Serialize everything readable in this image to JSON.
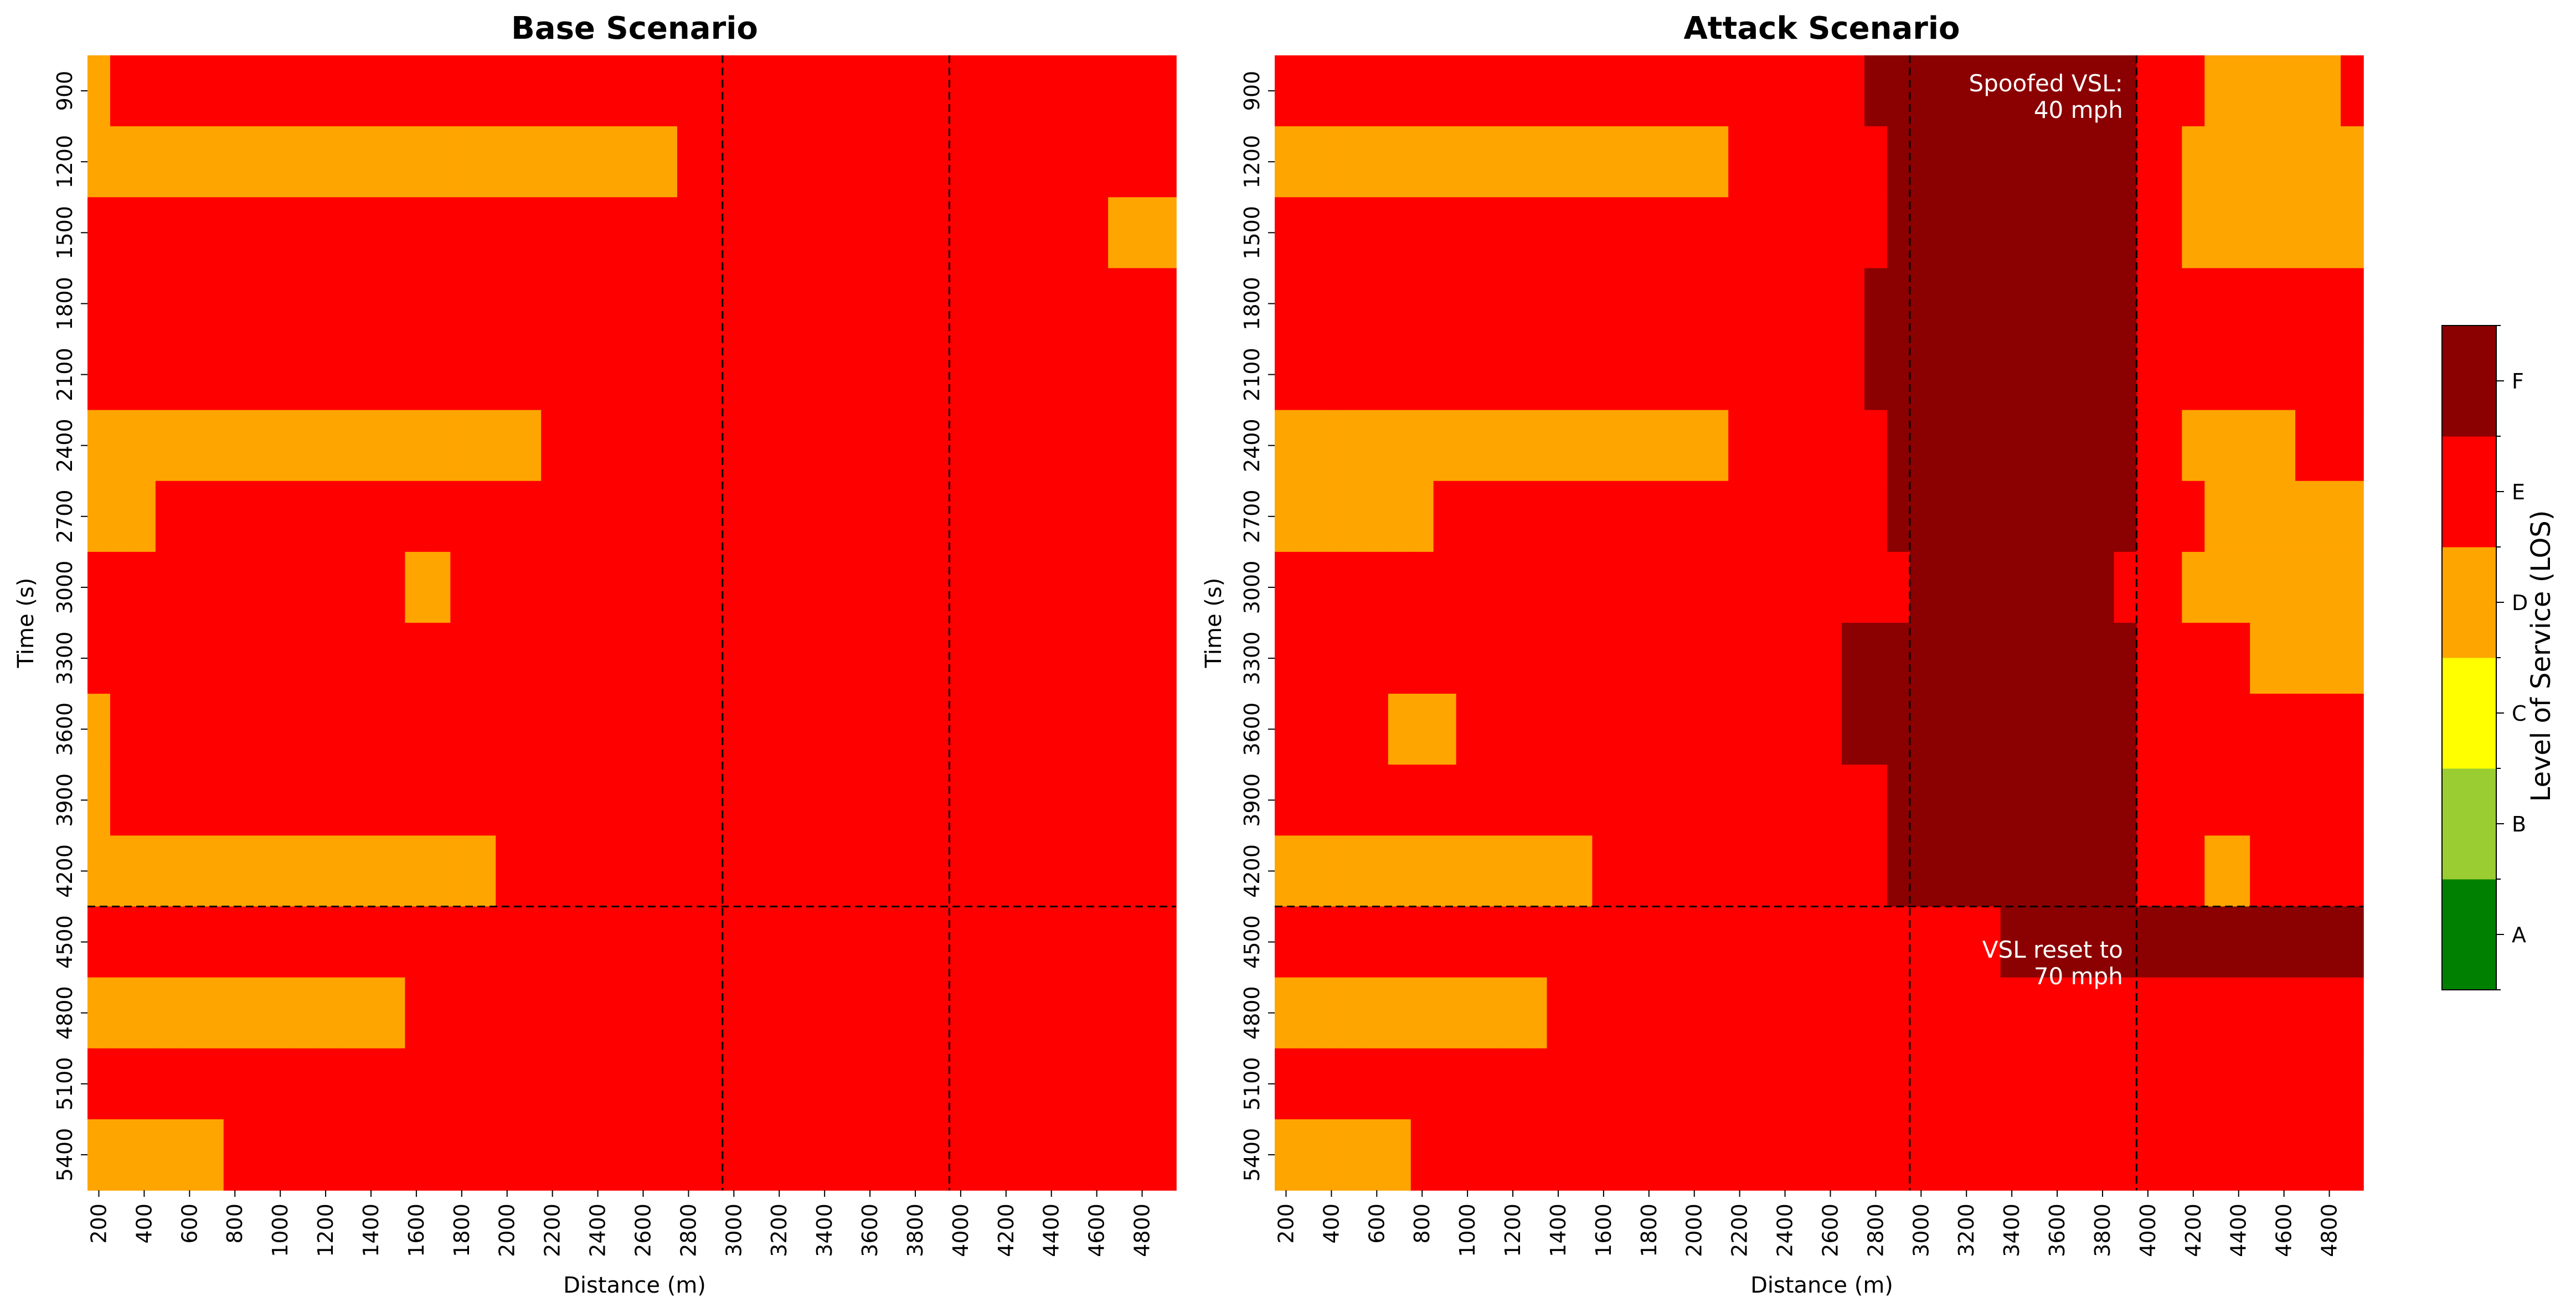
{
  "chart_data": {
    "type": "heatmap",
    "xlabel": "Distance (m)",
    "ylabel": "Time (s)",
    "x": [
      200,
      300,
      400,
      500,
      600,
      700,
      800,
      900,
      1000,
      1100,
      1200,
      1300,
      1400,
      1500,
      1600,
      1700,
      1800,
      1900,
      2000,
      2100,
      2200,
      2300,
      2400,
      2500,
      2600,
      2700,
      2800,
      2900,
      3000,
      3100,
      3200,
      3300,
      3400,
      3500,
      3600,
      3700,
      3800,
      3900,
      4000,
      4100,
      4200,
      4300,
      4400,
      4500,
      4600,
      4700,
      4800,
      4900
    ],
    "x_tick_labels": [
      "200",
      "400",
      "600",
      "800",
      "1000",
      "1200",
      "1400",
      "1600",
      "1800",
      "2000",
      "2200",
      "2400",
      "2600",
      "2800",
      "3000",
      "3200",
      "3400",
      "3600",
      "3800",
      "4000",
      "4200",
      "4400",
      "4600",
      "4800"
    ],
    "y": [
      900,
      1200,
      1500,
      1800,
      2100,
      2400,
      2700,
      3000,
      3300,
      3600,
      3900,
      4200,
      4500,
      4800,
      5100,
      5400
    ],
    "y_tick_labels": [
      "900",
      "1200",
      "1500",
      "1800",
      "2100",
      "2400",
      "2700",
      "3000",
      "3300",
      "3600",
      "3900",
      "4200",
      "4500",
      "4800",
      "5100",
      "5400"
    ],
    "los_levels": [
      "A",
      "B",
      "C",
      "D",
      "E",
      "F"
    ],
    "panels": [
      {
        "title": "Base Scenario",
        "rows": [
          "DEEEEEEEEEEEEEEEEEEEEEEEEEEEEEEEEEEEEEEEEEEEEEEE",
          "DDDDDDDDDDDDDDDDDDDDDDDDDDEEEEEEEEEEEEEEEEEEEEEE",
          "EEEEEEEEEEEEEEEEEEEEEEEEEEEEEEEEEEEEEEEEEEEEEDDD",
          "EEEEEEEEEEEEEEEEEEEEEEEEEEEEEEEEEEEEEEEEEEEEEEEE",
          "EEEEEEEEEEEEEEEEEEEEEEEEEEEEEEEEEEEEEEEEEEEEEEEE",
          "DDDDDDDDDDDDDDDDDDDDEEEEEEEEEEEEEEEEEEEEEEEEEEEE",
          "DDDEEEEEEEEEEEEEEEEEEEEEEEEEEEEEEEEEEEEEEEEEEEEE",
          "EEEEEEEEEEEEEEDDEEEEEEEEEEEEEEEEEEEEEEEEEEEEEEEE",
          "EEEEEEEEEEEEEEEEEEEEEEEEEEEEEEEEEEEEEEEEEEEEEEEE",
          "DEEEEEEEEEEEEEEEEEEEEEEEEEEEEEEEEEEEEEEEEEEEEEEE",
          "DEEEEEEEEEEEEEEEEEEEEEEEEEEEEEEEEEEEEEEEEEEEEEEE",
          "DDDDDDDDDDDDDDDDDDEEEEEEEEEEEEEEEEEEEEEEEEEEEEEE",
          "EEEEEEEEEEEEEEEEEEEEEEEEEEEEEEEEEEEEEEEEEEEEEEEE",
          "DDDDDDDDDDDDDDEEEEEEEEEEEEEEEEEEEEEEEEEEEEEEEEEE",
          "EEEEEEEEEEEEEEEEEEEEEEEEEEEEEEEEEEEEEEEEEEEEEEEE",
          "DDDDDDEEEEEEEEEEEEEEEEEEEEEEEEEEEEEEEEEEEEEEEEEE"
        ],
        "annotations": []
      },
      {
        "title": "Attack Scenario",
        "rows": [
          "EEEEEEEEEEEEEEEEEEEEEEEEEEFFFFFFFFFFFFEEEDDDDDDE",
          "DDDDDDDDDDDDDDDDDDDDEEEEEEEFFFFFFFFFFFEEDDDDDDDD",
          "EEEEEEEEEEEEEEEEEEEEEEEEEEEFFFFFFFFFFFEEDDDDDDDD",
          "EEEEEEEEEEEEEEEEEEEEEEEEEEFFFFFFFFFFFFEEEEEEEEEE",
          "EEEEEEEEEEEEEEEEEEEEEEEEEEFFFFFFFFFFFFEEEEEEEEEE",
          "DDDDDDDDDDDDDDDDDDDDEEEEEEEFFFFFFFFFFFEEDDDDDEEE",
          "DDDDDDDEEEEEEEEEEEEEEEEEEEEFFFFFFFFFFFEEEDDDDDDD",
          "EEEEEEEEEEEEEEEEEEEEEEEEEEEEFFFFFFFFFEEEDDDDDDDD",
          "EEEEEEEEEEEEEEEEEEEEEEEEEFFFFFFFFFFFFFEEEEEDDDDD",
          "EEEEEDDDEEEEEEEEEEEEEEEEEFFFFFFFFFFFFFEEEEEEEEEE",
          "EEEEEEEEEEEEEEEEEEEEEEEEEEEFFFFFFFFFFFEEEEEEEEEE",
          "DDDDDDDDDDDDDDEEEEEEEEEEEEEFFFFFFFFFFFEEEDDEEEEE",
          "EEEEEEEEEEEEEEEEEEEEEEEEEEEEEEEEFFFFFFFFFFFFFFFF",
          "DDDDDDDDDDDDEEEEEEEEEEEEEEEEEEEEEEEEEEEEEEEEEEEE",
          "EEEEEEEEEEEEEEEEEEEEEEEEEEEEEEEEEEEEEEEEEEEEEEEE",
          "DDDDDDEEEEEEEEEEEEEEEEEEEEEEEEEEEEEEEEEEEEEEEEEE"
        ],
        "annotations": [
          {
            "lines": [
              "Spoofed VSL:",
              "40 mph"
            ]
          },
          {
            "lines": [
              "VSL reset to",
              "70 mph"
            ]
          }
        ]
      }
    ],
    "reference_lines": {
      "x": [
        3000,
        4000
      ],
      "y_boundary_between": [
        4200,
        4500
      ]
    },
    "colorbar": {
      "label": "Level of Service (LOS)",
      "levels": [
        "A",
        "B",
        "C",
        "D",
        "E",
        "F"
      ],
      "colors": [
        "#008000",
        "#9acd32",
        "#ffff00",
        "#ffa500",
        "#ff0000",
        "#8b0000"
      ]
    }
  }
}
